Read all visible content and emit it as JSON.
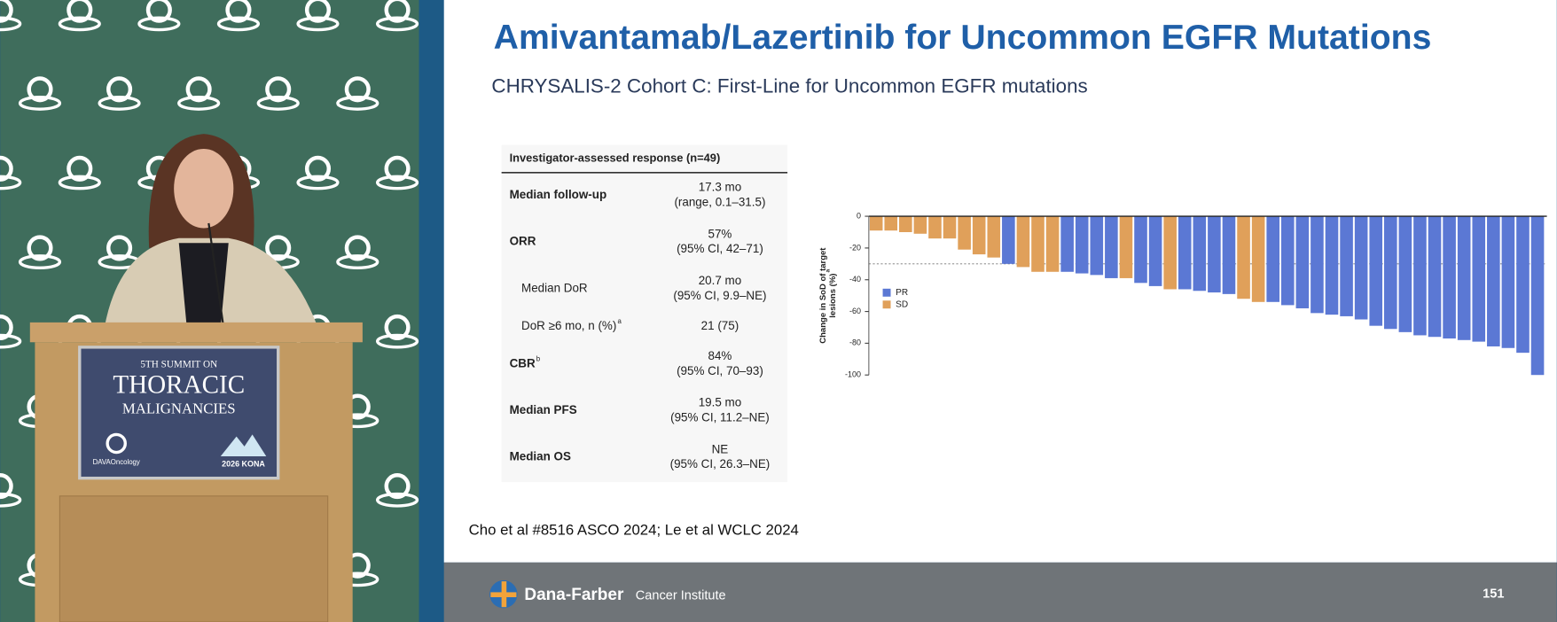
{
  "podium": {
    "line1": "5TH SUMMIT ON",
    "line2": "THORACIC",
    "line3": "MALIGNANCIES",
    "brand": "DAVAOncology",
    "event": "2026 KONA"
  },
  "slide": {
    "title": "Amivantamab/Lazertinib for Uncommon EGFR Mutations",
    "subtitle": "CHRYSALIS-2 Cohort C: First-Line for Uncommon EGFR mutations",
    "citation": "Cho et al #8516 ASCO 2024; Le et al WCLC 2024",
    "footer_brand": "Dana-Farber",
    "footer_institute": "Cancer Institute",
    "page_number": "151"
  },
  "table": {
    "header": "Investigator-assessed response (n=49)",
    "rows": [
      {
        "label": "Median follow-up",
        "bold": true,
        "value": [
          "17.3 mo",
          "(range, 0.1–31.5)"
        ]
      },
      {
        "label": "ORR",
        "bold": true,
        "value": [
          "57%",
          "(95% CI, 42–71)"
        ]
      },
      {
        "label": "Median DoR",
        "indent": true,
        "value": [
          "20.7 mo",
          "(95% CI, 9.9–NE)"
        ]
      },
      {
        "label": "DoR ≥6 mo, n (%)",
        "sup": "a",
        "indent": true,
        "value": [
          "21 (75)"
        ]
      },
      {
        "label": "CBR",
        "sup": "b",
        "bold": true,
        "value": [
          "84%",
          "(95% CI, 70–93)"
        ]
      },
      {
        "label": "Median PFS",
        "bold": true,
        "value": [
          "19.5 mo",
          "(95% CI, 11.2–NE)"
        ]
      },
      {
        "label": "Median OS",
        "bold": true,
        "value": [
          "NE",
          "(95% CI, 26.3–NE)"
        ]
      }
    ]
  },
  "chart_data": {
    "type": "bar",
    "ylabel": [
      "Change in SoD of target",
      "lesions (%)"
    ],
    "ylabel_sup": "a",
    "ylim": [
      -100,
      0
    ],
    "yticks": [
      0,
      -20,
      -40,
      -60,
      -80,
      -100
    ],
    "reference_line": -30,
    "legend": "left",
    "series": [
      {
        "name": "PR",
        "color": "#5b78d4",
        "values": [
          null,
          null,
          null,
          null,
          null,
          null,
          null,
          null,
          null,
          -30,
          null,
          null,
          null,
          -35,
          -36,
          -37,
          -39,
          null,
          -42,
          -44,
          null,
          -46,
          -47,
          -48,
          -49,
          null,
          null,
          -54,
          -56,
          -58,
          -61,
          -62,
          -63,
          -65,
          -69,
          -71,
          -73,
          -75,
          -76,
          -77,
          -78,
          -79,
          -82,
          -83,
          -86,
          -100
        ]
      },
      {
        "name": "SD",
        "color": "#e0a05a",
        "values": [
          -9,
          -9,
          -10,
          -11,
          -14,
          -14,
          -21,
          -24,
          -26,
          null,
          -32,
          -35,
          -35,
          null,
          null,
          null,
          null,
          -39,
          null,
          null,
          -46,
          null,
          null,
          null,
          null,
          -52,
          -54,
          null,
          null,
          null,
          null,
          null,
          null,
          null,
          null,
          null,
          null,
          null,
          null,
          null,
          null,
          null,
          null,
          null,
          null,
          null
        ]
      }
    ]
  }
}
